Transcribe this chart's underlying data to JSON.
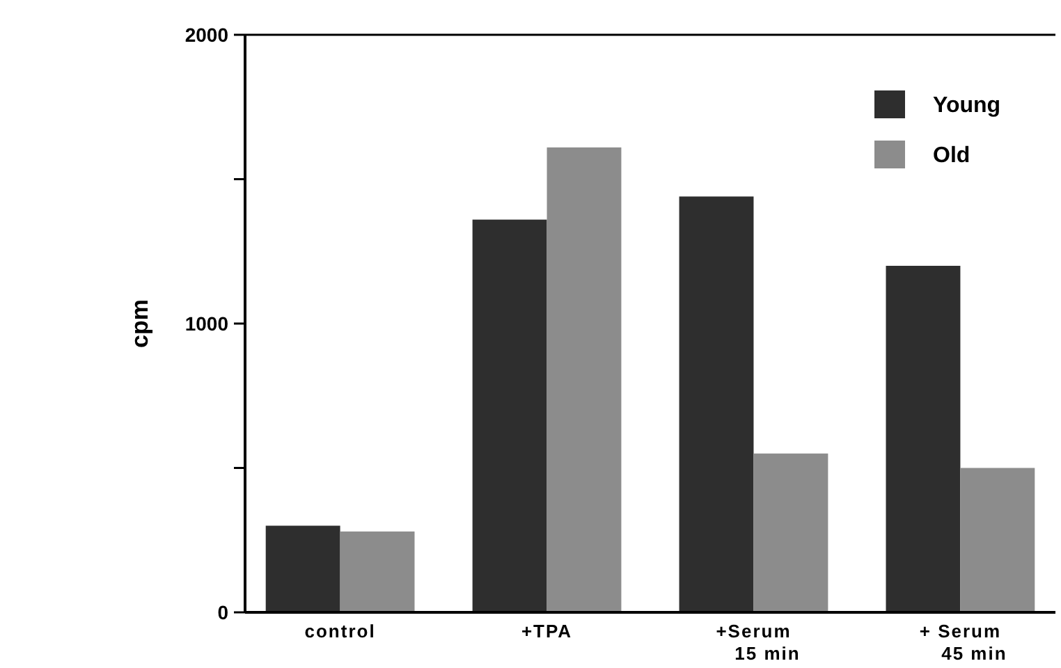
{
  "chart_data": {
    "type": "bar",
    "ylabel": "cpm",
    "categories": [
      "control",
      "+TPA",
      "+Serum\n15 min",
      "+ Serum\n45 min"
    ],
    "series": [
      {
        "name": "Young",
        "color": "#2e2e2e",
        "values": [
          300,
          1360,
          1440,
          1200
        ]
      },
      {
        "name": "Old",
        "color": "#8c8c8c",
        "values": [
          280,
          1610,
          550,
          500
        ]
      }
    ],
    "ylim": [
      0,
      2000
    ],
    "yticks": [
      0,
      {
        "value": 500,
        "label": null
      },
      1000,
      {
        "value": 1500,
        "label": null
      },
      2000
    ],
    "legend": "top right"
  }
}
